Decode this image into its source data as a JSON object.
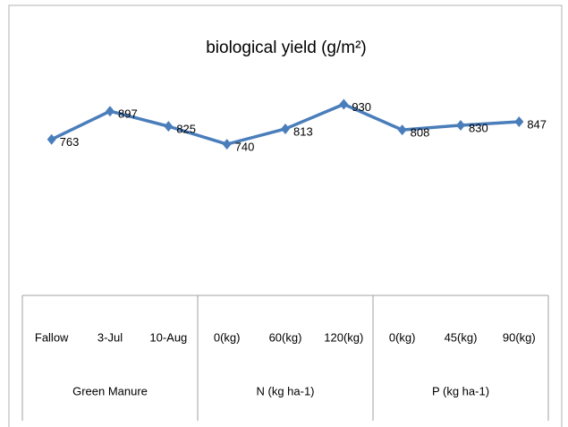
{
  "chart_data": {
    "type": "line",
    "title": "biological yield (g/m²)",
    "category_groups": [
      {
        "name": "Green Manure",
        "categories": [
          "Fallow",
          "3-Jul",
          "10-Aug"
        ]
      },
      {
        "name": "N (kg ha-1)",
        "categories": [
          "0(kg)",
          "60(kg)",
          "120(kg)"
        ]
      },
      {
        "name": "P (kg ha-1)",
        "categories": [
          "0(kg)",
          "45(kg)",
          "90(kg)"
        ]
      }
    ],
    "values": [
      763,
      897,
      825,
      740,
      813,
      930,
      808,
      830,
      847
    ],
    "color": "#4a7ebb",
    "ylim": [
      0,
      1000
    ]
  }
}
